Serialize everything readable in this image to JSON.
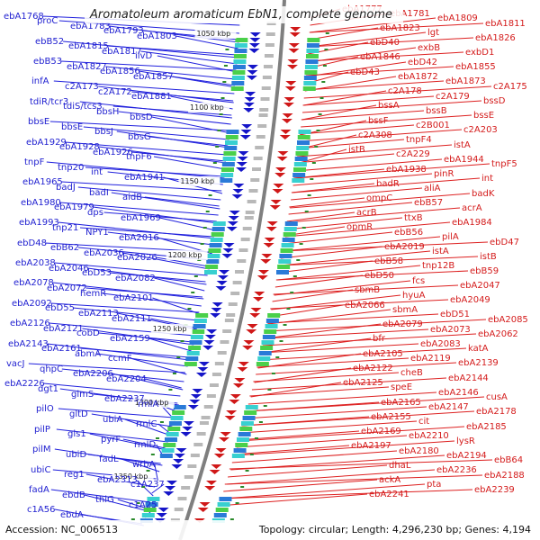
{
  "title": "Aromatoleum aromaticum EbN1, complete genome",
  "footer": {
    "accession": "Accession: NC_006513",
    "stats": "Topology: circular; Length: 4,296,230 bp; Genes: 4,194"
  },
  "scale_labels": [
    "1050 kbp",
    "1100 kbp",
    "1150 kbp",
    "1200 kbp",
    "1250 kbp",
    "1300 kbp",
    "1350 kbp"
  ],
  "left_labels": [
    "ebA1768",
    "proC",
    "ebA1783",
    "ebA1793",
    "ebA1803",
    "ebB52",
    "ebA1815",
    "ebA1817",
    "ilvD",
    "ebB53",
    "ebA1827",
    "ebA1856",
    "ebA1857",
    "infA",
    "c2A173",
    "c2A172",
    "ebA1881",
    "tdiR/tcr3",
    "tdiS/tcs3",
    "bbsH",
    "bbsD",
    "bbsE",
    "bbsE",
    "bbsJ",
    "bbsG",
    "ebA1929",
    "ebA1928",
    "ebA1926",
    "tnpF6",
    "tnpF",
    "tnp20",
    "int",
    "ebA1941",
    "ebA1965",
    "badJ",
    "badI",
    "aidB",
    "ebA1980",
    "ebA1979",
    "dps",
    "ebA1969",
    "ebA1993",
    "tnp21",
    "NPY1",
    "ebA2016",
    "ebD48",
    "ebB62",
    "ebA2036",
    "ebA2026",
    "ebA2038",
    "ebA2046",
    "ebD53",
    "ebA2082",
    "ebA2078",
    "ebA2072",
    "hemR",
    "ebA2101",
    "ebA2092",
    "ebD55",
    "ebA2113",
    "ebA2111",
    "ebA2126",
    "ebA2121",
    "cobD",
    "ebA2159",
    "ebA2143",
    "ebA2161",
    "abmA",
    "ccmF",
    "vacJ",
    "qhpC",
    "ebA2206",
    "ebA2204",
    "ebA2226",
    "dgt1",
    "glmS",
    "ebA2237",
    "rmlA",
    "pilO",
    "gltD",
    "ubiA",
    "rmlC",
    "pilP",
    "gls1",
    "pyrF",
    "rmlD",
    "pilM",
    "ubiD",
    "fadL",
    "wrbA",
    "ubiC",
    "reg1",
    "ebA2313",
    "c1A237",
    "fadA",
    "ebdB",
    "thiG",
    "c1A25",
    "c1A56",
    "ebdA"
  ],
  "right_labels": [
    "ebA1777",
    "ebA1781",
    "ebA1809",
    "ebA1811",
    "ebA1823",
    "lgt",
    "ebA1826",
    "ebD40",
    "exbB",
    "exbD1",
    "ebA1846",
    "ebD42",
    "ebA1855",
    "ebD43",
    "ebA1872",
    "ebA1873",
    "c2A175",
    "c2A178",
    "c2A179",
    "bssD",
    "bssA",
    "bssB",
    "bssE",
    "bssF",
    "c2B001",
    "c2A203",
    "c2A308",
    "tnpF4",
    "istA",
    "istB",
    "c2A229",
    "ebA1944",
    "tnpF5",
    "ebA1938",
    "pinR",
    "int",
    "badR",
    "aliA",
    "badK",
    "ompC",
    "ebB57",
    "acrA",
    "acrB",
    "ttxB",
    "ebA1984",
    "opmR",
    "ebB56",
    "pilA",
    "ebD47",
    "ebA2019",
    "istA",
    "istB",
    "ebB58",
    "tnp12B",
    "ebB59",
    "ebD50",
    "fcs",
    "ebA2047",
    "sbmB",
    "hyuA",
    "ebA2049",
    "ebA2066",
    "sbmA",
    "ebD51",
    "ebA2085",
    "ebA2079",
    "ebA2073",
    "ebA2062",
    "bfr",
    "ebA2083",
    "katA",
    "ebA2105",
    "ebA2119",
    "ebA2139",
    "ebA2122",
    "cheB",
    "ebA2144",
    "ebA2125",
    "speE",
    "ebA2146",
    "cusA",
    "ebA2165",
    "ebA2147",
    "ebA2178",
    "ebA2155",
    "cit",
    "ebA2185",
    "ebA2169",
    "ebA2210",
    "lysR",
    "ebA2197",
    "ebA2180",
    "ebA2194",
    "ebB64",
    "dhaL",
    "ebA2236",
    "ebA2188",
    "ackA",
    "pta",
    "ebA2239",
    "ebA2241"
  ],
  "colors": {
    "forward": "#d01818",
    "reverse": "#1515c8",
    "backbone": "#808080",
    "scale_tick": "#2a8a2a",
    "left_line": "#2020dd",
    "right_line": "#dd2020"
  }
}
